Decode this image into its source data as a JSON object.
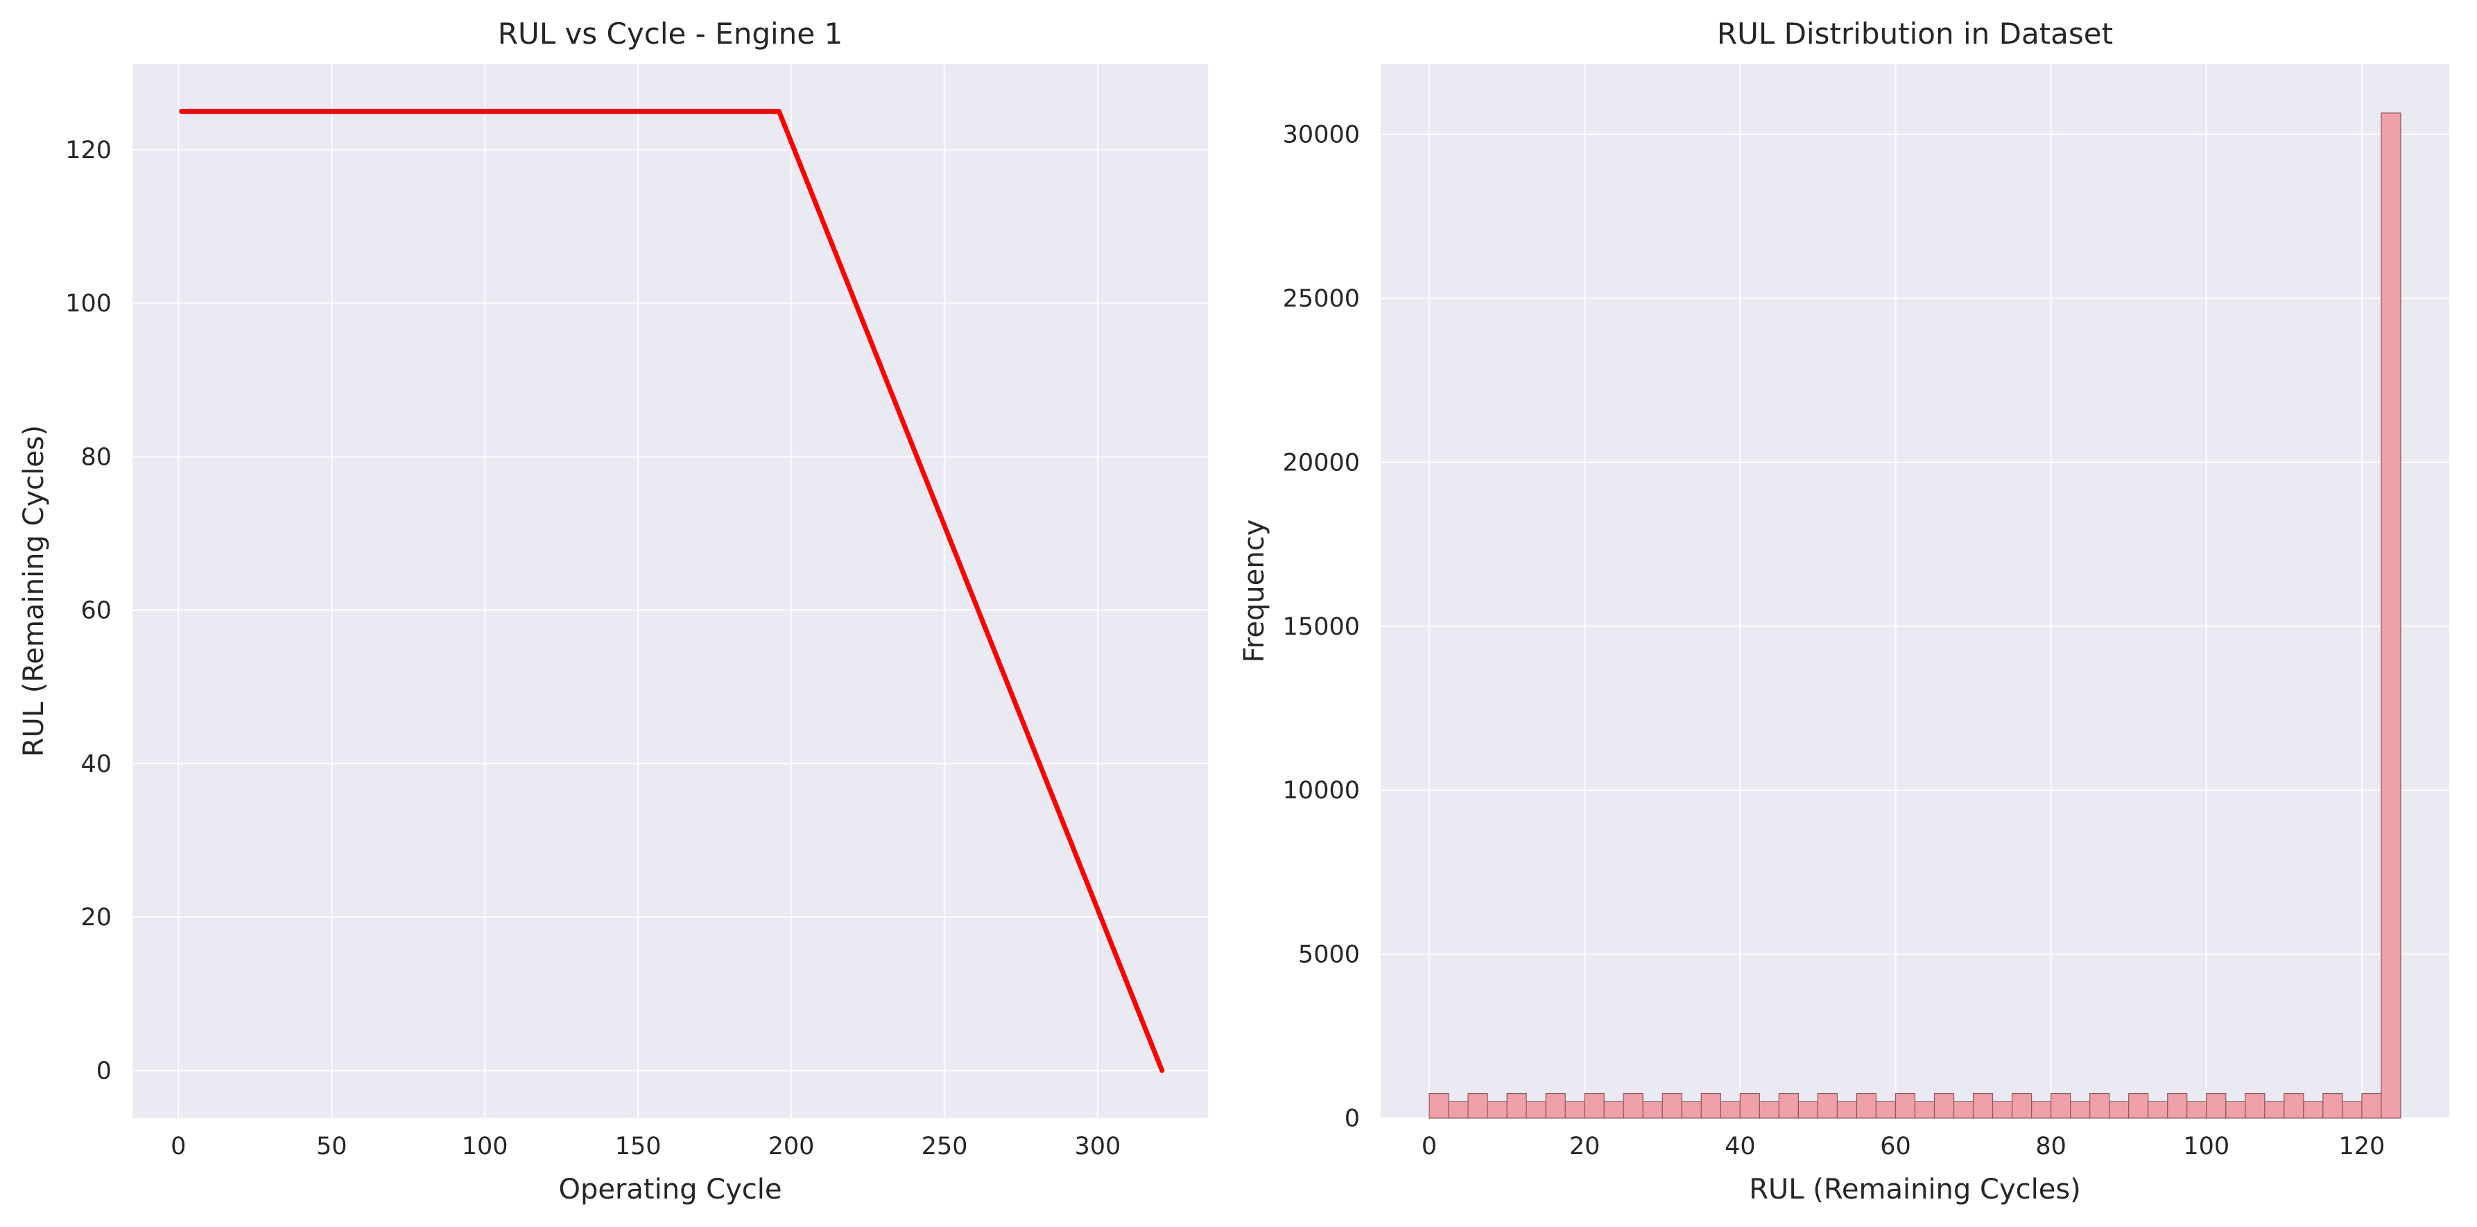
{
  "chart_data": [
    {
      "type": "line",
      "title": "RUL vs Cycle - Engine 1",
      "xlabel": "Operating Cycle",
      "ylabel": "RUL (Remaining Cycles)",
      "xlim": [
        -15,
        336
      ],
      "ylim": [
        -6.2,
        131.2
      ],
      "xticks": [
        0,
        50,
        100,
        150,
        200,
        250,
        300
      ],
      "yticks": [
        0,
        20,
        40,
        60,
        80,
        100,
        120
      ],
      "grid": true,
      "background": "#EAEAF2",
      "series": [
        {
          "color": "#FF0000",
          "x": [
            1,
            196,
            321
          ],
          "y": [
            125,
            125,
            0
          ]
        }
      ]
    },
    {
      "type": "bar",
      "title": "RUL Distribution in Dataset",
      "xlabel": "RUL (Remaining Cycles)",
      "ylabel": "Frequency",
      "xlim": [
        -6.25,
        131.25
      ],
      "ylim": [
        0,
        32150
      ],
      "xticks": [
        0,
        20,
        40,
        60,
        80,
        100,
        120
      ],
      "yticks": [
        0,
        5000,
        10000,
        15000,
        20000,
        25000,
        30000
      ],
      "grid": true,
      "background": "#EAEAF2",
      "bar_color": "#F0A0A8",
      "bin_width": 2.5,
      "bin_start": 0,
      "values": [
        750,
        500,
        750,
        500,
        750,
        500,
        750,
        500,
        750,
        500,
        750,
        500,
        750,
        500,
        750,
        500,
        750,
        500,
        750,
        500,
        750,
        500,
        750,
        500,
        750,
        500,
        750,
        500,
        750,
        500,
        750,
        500,
        750,
        500,
        750,
        500,
        750,
        500,
        750,
        500,
        750,
        500,
        750,
        500,
        750,
        500,
        750,
        500,
        750,
        30650
      ]
    }
  ]
}
